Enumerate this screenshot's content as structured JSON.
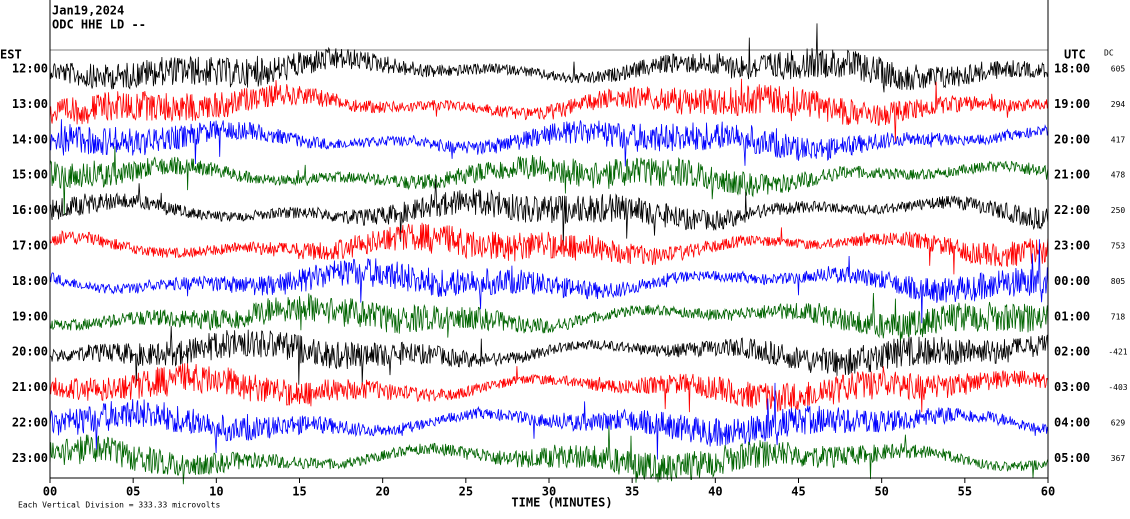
{
  "chart_data": {
    "type": "helicorder",
    "header_lines": [
      "Jan19,2024",
      "ODC HHE LD --"
    ],
    "left_axis_label": "EST",
    "right_axis_label": "UTC",
    "dc_label": "DC",
    "rows": [
      {
        "est": "12:00",
        "utc": "18:00",
        "dc": 605,
        "color": "#000000"
      },
      {
        "est": "13:00",
        "utc": "19:00",
        "dc": 294,
        "color": "#ff0000"
      },
      {
        "est": "14:00",
        "utc": "20:00",
        "dc": 417,
        "color": "#0000ff"
      },
      {
        "est": "15:00",
        "utc": "21:00",
        "dc": 478,
        "color": "#006400"
      },
      {
        "est": "16:00",
        "utc": "22:00",
        "dc": 250,
        "color": "#000000"
      },
      {
        "est": "17:00",
        "utc": "23:00",
        "dc": 753,
        "color": "#ff0000"
      },
      {
        "est": "18:00",
        "utc": "00:00",
        "dc": 805,
        "color": "#0000ff"
      },
      {
        "est": "19:00",
        "utc": "01:00",
        "dc": 718,
        "color": "#006400"
      },
      {
        "est": "20:00",
        "utc": "02:00",
        "dc": -421,
        "color": "#000000"
      },
      {
        "est": "21:00",
        "utc": "03:00",
        "dc": -403,
        "color": "#ff0000"
      },
      {
        "est": "22:00",
        "utc": "04:00",
        "dc": 629,
        "color": "#0000ff"
      },
      {
        "est": "23:00",
        "utc": "05:00",
        "dc": 367,
        "color": "#006400"
      }
    ],
    "xlim": [
      0,
      60
    ],
    "xticks": [
      {
        "value": 0,
        "label": "00"
      },
      {
        "value": 5,
        "label": "05"
      },
      10,
      15,
      20,
      25,
      30,
      35,
      40,
      45,
      50,
      55,
      60
    ],
    "x_label": "TIME (MINUTES)",
    "footnote": "Each Vertical Division =  333.33 microvolts"
  }
}
